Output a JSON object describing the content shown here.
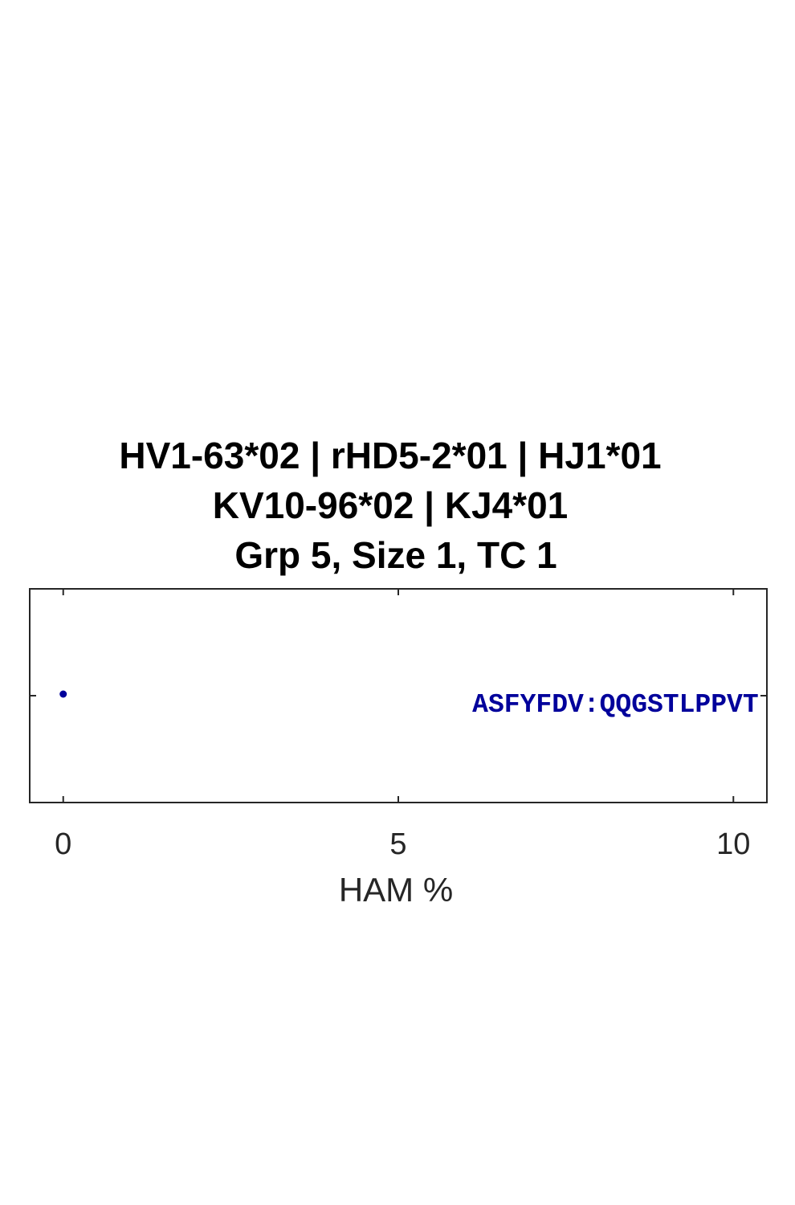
{
  "chart_data": {
    "type": "scatter",
    "title": [
      "HV1-63*02 | rHD5-2*01 | HJ1*01",
      "KV10-96*02 | KJ4*01",
      "Grp 5, Size 1, TC 1"
    ],
    "xlabel": "HAM %",
    "ylabel": "",
    "xlim": [
      -0.5,
      10.5
    ],
    "ylim": [
      0,
      2
    ],
    "xticks": [
      0,
      5,
      10
    ],
    "yticks": [
      0,
      1,
      2
    ],
    "grid": false,
    "points": [
      {
        "x": 0,
        "y": 1
      }
    ],
    "annotations": [
      {
        "text": "ASFYFDV:QQGSTLPPVT",
        "x": 10.4,
        "y": 1,
        "anchor": "right"
      }
    ],
    "colors": {
      "marker": "#00009b",
      "annotation": "#00009b",
      "axes": "#262626"
    }
  }
}
